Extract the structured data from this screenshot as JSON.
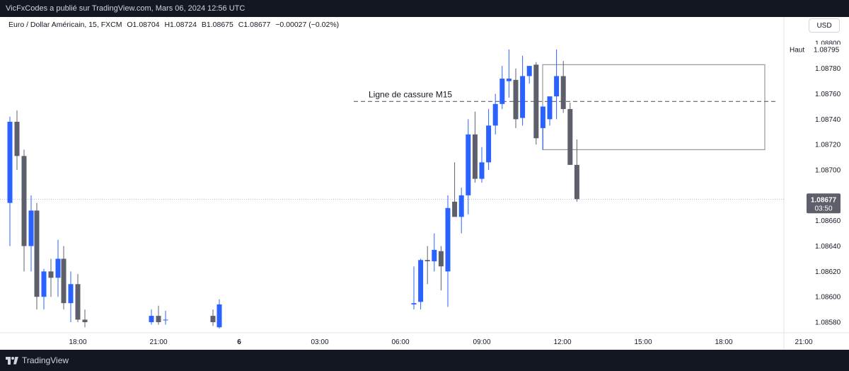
{
  "header": {
    "published": "VicFxCodes a publié sur TradingView.com, Mars 06, 2024 12:56 UTC"
  },
  "legend": {
    "symbol": "Euro / Dollar Américain, 15, FXCM",
    "open": "O1.08704",
    "high": "H1.08724",
    "low": "B1.08675",
    "close": "C1.08677",
    "change": "−0.00027 (−0.02%)"
  },
  "currency_button": "USD",
  "footer": {
    "brand": "TradingView"
  },
  "colors": {
    "up": "#2962ff",
    "down": "#5d606b",
    "bg": "#ffffff",
    "frame": "#131722"
  },
  "chart_data": {
    "type": "candlestick",
    "ylim": [
      1.08575,
      1.08815
    ],
    "y_ticks": [
      "1.08800",
      "1.08780",
      "1.08760",
      "1.08740",
      "1.08720",
      "1.08700",
      "1.08660",
      "1.08640",
      "1.08620",
      "1.08600",
      "1.08580"
    ],
    "x_ticks": [
      "18:00",
      "21:00",
      "6",
      "03:00",
      "06:00",
      "09:00",
      "12:00",
      "15:00",
      "18:00",
      "21:00"
    ],
    "high_label": "Haut",
    "high_value": "1.08795",
    "last_price": "1.08677",
    "countdown": "03:50",
    "annotation": "Ligne de cassure M15",
    "annotation_level": 1.08754,
    "box": {
      "top": 1.08783,
      "bottom": 1.08716
    },
    "candles": [
      {
        "o": 1.08674,
        "h": 1.08742,
        "l": 1.0864,
        "c": 1.08738
      },
      {
        "o": 1.08738,
        "h": 1.08747,
        "l": 1.087,
        "c": 1.08711
      },
      {
        "o": 1.08711,
        "h": 1.08716,
        "l": 1.0862,
        "c": 1.0864
      },
      {
        "o": 1.0864,
        "h": 1.0868,
        "l": 1.0862,
        "c": 1.08668
      },
      {
        "o": 1.08668,
        "h": 1.08674,
        "l": 1.0859,
        "c": 1.086
      },
      {
        "o": 1.086,
        "h": 1.08622,
        "l": 1.0859,
        "c": 1.0862
      },
      {
        "o": 1.0862,
        "h": 1.0863,
        "l": 1.086,
        "c": 1.08615
      },
      {
        "o": 1.08615,
        "h": 1.08645,
        "l": 1.086,
        "c": 1.0863
      },
      {
        "o": 1.0863,
        "h": 1.0864,
        "l": 1.0859,
        "c": 1.08595
      },
      {
        "o": 1.08595,
        "h": 1.0862,
        "l": 1.0858,
        "c": 1.0861
      },
      {
        "o": 1.0861,
        "h": 1.08618,
        "l": 1.0858,
        "c": 1.08582
      },
      {
        "o": 1.08582,
        "h": 1.0859,
        "l": 1.08576,
        "c": 1.0858
      },
      {
        "o": 1.0858,
        "h": 1.0859,
        "l": 1.08578,
        "c": 1.08585
      },
      {
        "o": 1.08585,
        "h": 1.08593,
        "l": 1.08578,
        "c": 1.0858
      },
      {
        "o": 1.08582,
        "h": 1.08589,
        "l": 1.08578,
        "c": 1.08582
      },
      {
        "o": 1.08585,
        "h": 1.0859,
        "l": 1.08577,
        "c": 1.0858
      },
      {
        "o": 1.08576,
        "h": 1.08598,
        "l": 1.08575,
        "c": 1.08594
      },
      {
        "o": 1.08594,
        "h": 1.08624,
        "l": 1.0859,
        "c": 1.08595
      },
      {
        "o": 1.08596,
        "h": 1.0863,
        "l": 1.0859,
        "c": 1.08629
      },
      {
        "o": 1.08629,
        "h": 1.0864,
        "l": 1.0861,
        "c": 1.08628
      },
      {
        "o": 1.08628,
        "h": 1.0865,
        "l": 1.0862,
        "c": 1.08637
      },
      {
        "o": 1.08636,
        "h": 1.0864,
        "l": 1.08605,
        "c": 1.08624
      },
      {
        "o": 1.0862,
        "h": 1.0868,
        "l": 1.08592,
        "c": 1.0867
      },
      {
        "o": 1.08675,
        "h": 1.08706,
        "l": 1.08665,
        "c": 1.08663
      },
      {
        "o": 1.08663,
        "h": 1.08686,
        "l": 1.0865,
        "c": 1.0868
      },
      {
        "o": 1.0868,
        "h": 1.0874,
        "l": 1.08665,
        "c": 1.08728
      },
      {
        "o": 1.08728,
        "h": 1.08746,
        "l": 1.0869,
        "c": 1.08693
      },
      {
        "o": 1.08693,
        "h": 1.08718,
        "l": 1.0869,
        "c": 1.08706
      },
      {
        "o": 1.08706,
        "h": 1.08748,
        "l": 1.087,
        "c": 1.08735
      },
      {
        "o": 1.08735,
        "h": 1.0876,
        "l": 1.08728,
        "c": 1.08752
      },
      {
        "o": 1.08752,
        "h": 1.08782,
        "l": 1.08748,
        "c": 1.08772
      },
      {
        "o": 1.0877,
        "h": 1.08795,
        "l": 1.08757,
        "c": 1.08772
      },
      {
        "o": 1.08771,
        "h": 1.0878,
        "l": 1.08733,
        "c": 1.0874
      },
      {
        "o": 1.08741,
        "h": 1.0879,
        "l": 1.08735,
        "c": 1.08774
      },
      {
        "o": 1.08774,
        "h": 1.08782,
        "l": 1.08768,
        "c": 1.08782
      },
      {
        "o": 1.08783,
        "h": 1.08785,
        "l": 1.0872,
        "c": 1.08725
      },
      {
        "o": 1.08733,
        "h": 1.0875,
        "l": 1.08716,
        "c": 1.0875
      },
      {
        "o": 1.0874,
        "h": 1.08757,
        "l": 1.08735,
        "c": 1.08758
      },
      {
        "o": 1.08758,
        "h": 1.08795,
        "l": 1.0874,
        "c": 1.08774
      },
      {
        "o": 1.08774,
        "h": 1.08786,
        "l": 1.08745,
        "c": 1.08748
      },
      {
        "o": 1.08748,
        "h": 1.08753,
        "l": 1.08704,
        "c": 1.08704
      },
      {
        "o": 1.08704,
        "h": 1.08724,
        "l": 1.08675,
        "c": 1.08677
      }
    ]
  }
}
